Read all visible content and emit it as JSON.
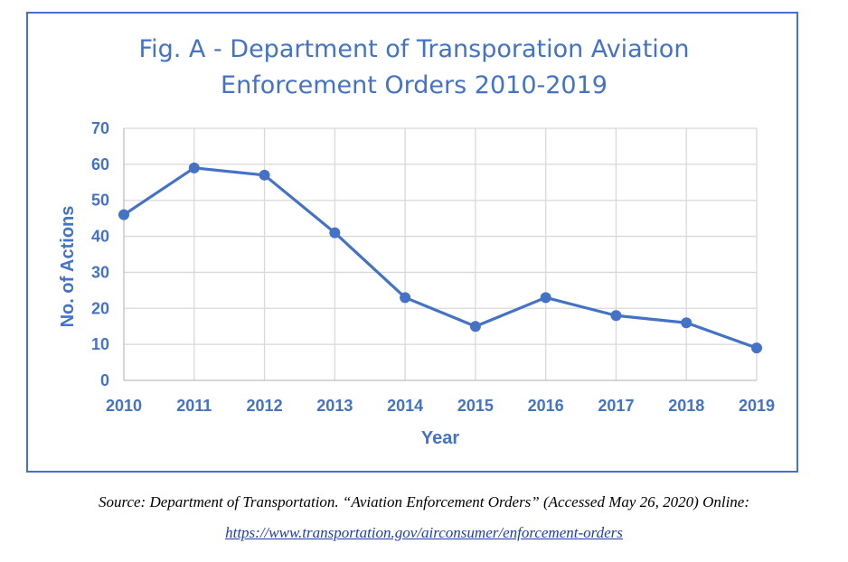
{
  "chart_data": {
    "type": "line",
    "title": "Fig. A - Department of Transporation Aviation Enforcement Orders 2010-2019",
    "title_lines": [
      "Fig. A - Department of Transporation Aviation",
      "Enforcement Orders 2010-2019"
    ],
    "xlabel": "Year",
    "ylabel": "No. of Actions",
    "x": [
      "2010",
      "2011",
      "2012",
      "2013",
      "2014",
      "2015",
      "2016",
      "2017",
      "2018",
      "2019"
    ],
    "series": [
      {
        "values": [
          46,
          59,
          57,
          41,
          23,
          15,
          23,
          18,
          16,
          9
        ]
      }
    ],
    "ylim": [
      0,
      70
    ],
    "yticks": [
      "0",
      "10",
      "20",
      "30",
      "40",
      "50",
      "60",
      "70"
    ],
    "grid": true,
    "legend": "none",
    "colors": {
      "line": "#4472c4",
      "grid": "#d9d9d9",
      "text": "#4472c4",
      "frame": "#4472c4"
    }
  },
  "source": {
    "text": "Source: Department of Transportation. “Aviation Enforcement Orders” (Accessed May 26, 2020) Online:",
    "url": "https://www.transportation.gov/airconsumer/enforcement-orders"
  }
}
